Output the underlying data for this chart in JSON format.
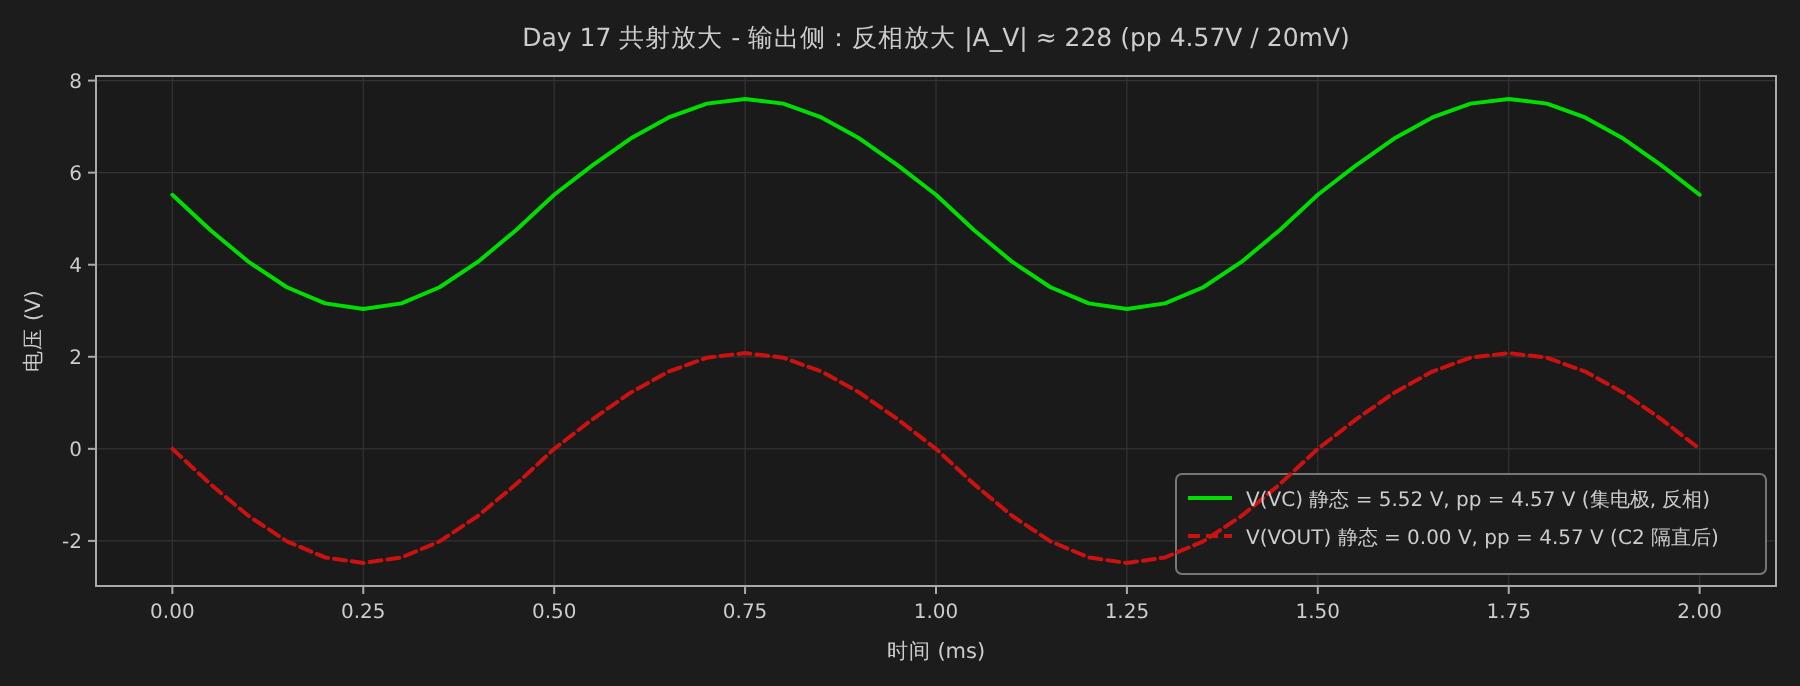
{
  "chart_data": {
    "type": "line",
    "title": "Day 17 共射放大 - 输出侧：反相放大 |A_V| ≈ 228 (pp 4.57V / 20mV)",
    "xlabel": "时间 (ms)",
    "ylabel": "电压 (V)",
    "x": [
      0,
      0.05,
      0.1,
      0.15,
      0.2,
      0.25,
      0.3,
      0.35,
      0.4,
      0.45,
      0.5,
      0.55,
      0.6,
      0.65,
      0.7,
      0.75,
      0.8,
      0.85,
      0.9,
      0.95,
      1,
      1.05,
      1.1,
      1.15,
      1.2,
      1.25,
      1.3,
      1.35,
      1.4,
      1.45,
      1.5,
      1.55,
      1.6,
      1.65,
      1.7,
      1.75,
      1.8,
      1.85,
      1.9,
      1.95,
      2
    ],
    "series": [
      {
        "name": "V(VC) 静态 = 5.52 V, pp = 4.57 V  (集电极, 反相)",
        "color": "#00dd00",
        "line_style": "solid",
        "values": [
          5.52,
          4.75,
          4.06,
          3.51,
          3.16,
          3.04,
          3.16,
          3.51,
          4.06,
          4.75,
          5.52,
          6.16,
          6.74,
          7.2,
          7.5,
          7.6,
          7.5,
          7.2,
          6.74,
          6.16,
          5.52,
          4.75,
          4.06,
          3.51,
          3.16,
          3.04,
          3.16,
          3.51,
          4.06,
          4.75,
          5.52,
          6.16,
          6.74,
          7.2,
          7.5,
          7.6,
          7.5,
          7.2,
          6.74,
          6.16,
          5.52
        ]
      },
      {
        "name": "V(VOUT) 静态 = 0.00 V, pp = 4.57 V  (C2 隔直后)",
        "color": "#cc1111",
        "line_style": "dashed",
        "values": [
          0,
          -0.77,
          -1.46,
          -2.01,
          -2.36,
          -2.48,
          -2.36,
          -2.01,
          -1.46,
          -0.77,
          0,
          0.64,
          1.22,
          1.68,
          1.98,
          2.08,
          1.98,
          1.68,
          1.22,
          0.64,
          0,
          -0.77,
          -1.46,
          -2.01,
          -2.36,
          -2.48,
          -2.36,
          -2.01,
          -1.46,
          -0.77,
          0,
          0.64,
          1.22,
          1.68,
          1.98,
          2.08,
          1.98,
          1.68,
          1.22,
          0.64,
          0
        ]
      }
    ],
    "xlim": [
      -0.1,
      2.1
    ],
    "xticks": [
      {
        "value": 0,
        "label": "0.00"
      },
      {
        "value": 0.25,
        "label": "0.25"
      },
      {
        "value": 0.5,
        "label": "0.50"
      },
      {
        "value": 0.75,
        "label": "0.75"
      },
      {
        "value": 1,
        "label": "1.00"
      },
      {
        "value": 1.25,
        "label": "1.25"
      },
      {
        "value": 1.5,
        "label": "1.50"
      },
      {
        "value": 1.75,
        "label": "1.75"
      },
      {
        "value": 2,
        "label": "2.00"
      }
    ],
    "ylim": [
      -2.98,
      8.1
    ],
    "yticks": [
      -2,
      0,
      2,
      4,
      6,
      8
    ],
    "grid": true,
    "legend": "bottom right"
  }
}
